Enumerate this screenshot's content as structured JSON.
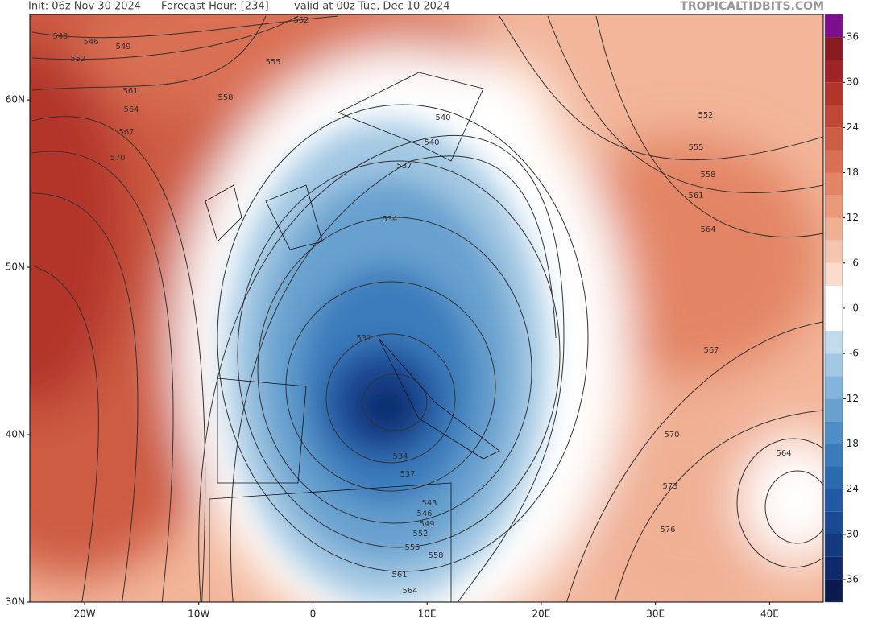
{
  "header": {
    "init": "Init: 06z Nov 30 2024",
    "forecast_hour": "Forecast Hour: [234]",
    "valid": "valid at 00z Tue, Dec 10 2024",
    "brand": "TROPICALTIDBITS.COM"
  },
  "map": {
    "xlim": [
      -24.8,
      44.7
    ],
    "ylim": [
      30,
      65.1
    ],
    "xticks": [
      {
        "value": -20,
        "label": "20W"
      },
      {
        "value": -10,
        "label": "10W"
      },
      0,
      {
        "value": 10,
        "label": "10E"
      },
      {
        "value": 20,
        "label": "20E"
      },
      {
        "value": 30,
        "label": "30E"
      },
      {
        "value": 40,
        "label": "40E"
      }
    ],
    "yticks": [
      {
        "value": 60,
        "label": "60N"
      },
      {
        "value": 50,
        "label": "50N"
      },
      {
        "value": 40,
        "label": "40N"
      },
      {
        "value": 30,
        "label": "30N"
      }
    ],
    "contour_labels": [
      543,
      546,
      549,
      552,
      552,
      555,
      558,
      561,
      564,
      567,
      570,
      540,
      540,
      537,
      534,
      531,
      534,
      537,
      543,
      546,
      549,
      552,
      555,
      558,
      561,
      564,
      552,
      555,
      558,
      561,
      564,
      567,
      570,
      573,
      576,
      564
    ]
  },
  "colorbar": {
    "clim": [
      -39,
      39
    ],
    "step": 3,
    "colors": [
      "#0b1a4e",
      "#0f2a6b",
      "#15397f",
      "#1b4a94",
      "#2159a4",
      "#2a6ab0",
      "#3a7bbb",
      "#4e8ec6",
      "#68a1cf",
      "#84b4d9",
      "#a2c8e3",
      "#c2dbec",
      "#ffffff",
      "#ffffff",
      "#f9dccb",
      "#f5c6ae",
      "#f0b094",
      "#ea9a7b",
      "#e38565",
      "#d97052",
      "#cd5c43",
      "#c14736",
      "#b3342b",
      "#a02326",
      "#881a22",
      "#7d0f8e"
    ],
    "ticks": [
      36,
      30,
      24,
      18,
      12,
      6,
      0,
      -6,
      -12,
      -18,
      -24,
      -30,
      -36
    ]
  }
}
